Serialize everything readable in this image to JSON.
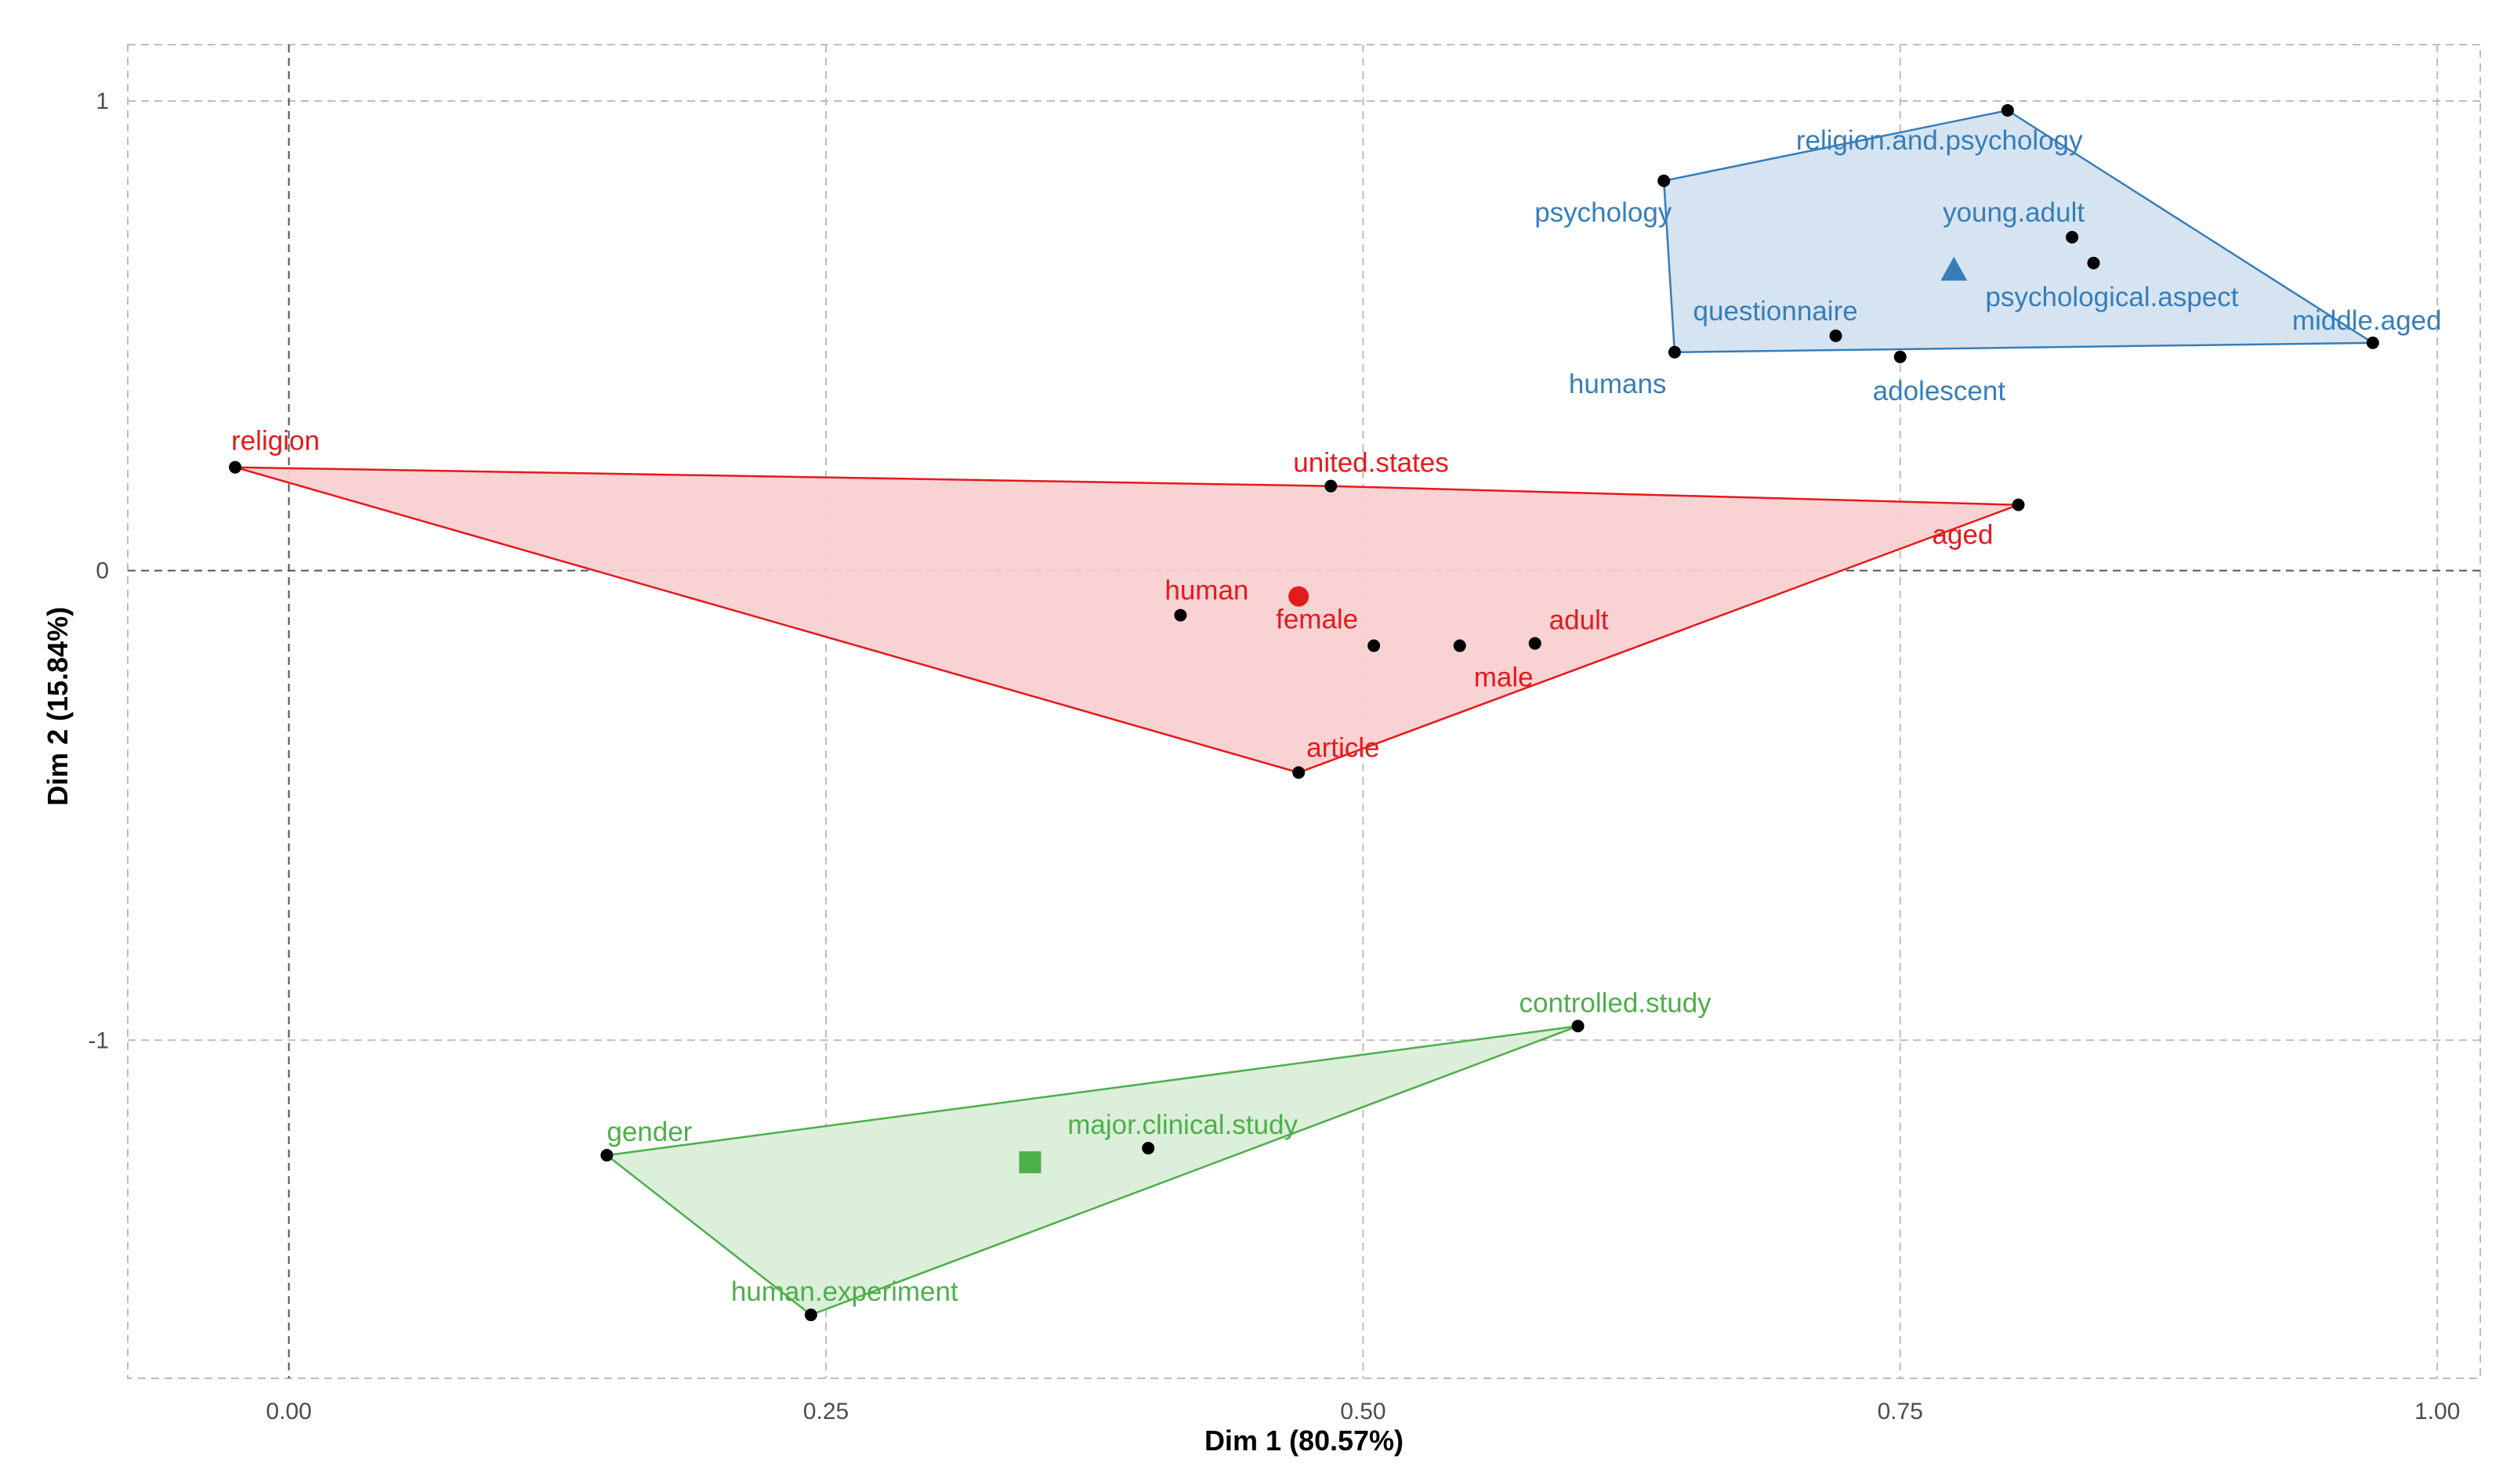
{
  "chart_data": {
    "type": "scatter",
    "title": "",
    "xlabel": "Dim 1 (80.57%)",
    "ylabel": "Dim 2 (15.84%)",
    "xlim": [
      -0.075,
      1.02
    ],
    "ylim": [
      -1.72,
      1.12
    ],
    "xticks": [
      0.0,
      0.25,
      0.5,
      0.75,
      1.0
    ],
    "xtick_labels": [
      "0.00",
      "0.25",
      "0.50",
      "0.75",
      "1.00"
    ],
    "yticks": [
      1,
      0,
      -1
    ],
    "ytick_labels": [
      "1",
      "0",
      "-1"
    ],
    "grid": true,
    "legend": "none",
    "clusters": [
      {
        "name": "cluster-1",
        "color": "#e41a1c",
        "fill": "#f8cfd0",
        "centroid": [
          0.47,
          -0.055
        ],
        "centroid_shape": "circle",
        "hull": [
          "religion",
          "united.states",
          "aged",
          "article"
        ],
        "points": [
          {
            "label": "religion",
            "x": -0.025,
            "y": 0.22
          },
          {
            "label": "united.states",
            "x": 0.485,
            "y": 0.18
          },
          {
            "label": "aged",
            "x": 0.805,
            "y": 0.14
          },
          {
            "label": "human",
            "x": 0.415,
            "y": -0.095
          },
          {
            "label": "female",
            "x": 0.505,
            "y": -0.16
          },
          {
            "label": "male",
            "x": 0.545,
            "y": -0.16
          },
          {
            "label": "adult",
            "x": 0.58,
            "y": -0.155
          },
          {
            "label": "article",
            "x": 0.47,
            "y": -0.43
          }
        ]
      },
      {
        "name": "cluster-2",
        "color": "#377eb8",
        "fill": "#d3e2f0",
        "centroid": [
          0.775,
          0.64
        ],
        "centroid_shape": "triangle",
        "hull": [
          "psychology",
          "religion.and.psychology",
          "middle.aged",
          "humans"
        ],
        "points": [
          {
            "label": "religion.and.psychology",
            "x": 0.8,
            "y": 0.98
          },
          {
            "label": "psychology",
            "x": 0.64,
            "y": 0.83
          },
          {
            "label": "young.adult",
            "x": 0.83,
            "y": 0.71
          },
          {
            "label": "psychological.aspect",
            "x": 0.84,
            "y": 0.655
          },
          {
            "label": "questionnaire",
            "x": 0.72,
            "y": 0.5
          },
          {
            "label": "humans",
            "x": 0.645,
            "y": 0.465
          },
          {
            "label": "adolescent",
            "x": 0.75,
            "y": 0.455
          },
          {
            "label": "middle.aged",
            "x": 0.97,
            "y": 0.485
          }
        ]
      },
      {
        "name": "cluster-3",
        "color": "#4daf4a",
        "fill": "#d9eed7",
        "centroid": [
          0.345,
          -1.26
        ],
        "centroid_shape": "square",
        "hull": [
          "gender",
          "controlled.study",
          "human.experiment"
        ],
        "points": [
          {
            "label": "controlled.study",
            "x": 0.6,
            "y": -0.97
          },
          {
            "label": "gender",
            "x": 0.148,
            "y": -1.245
          },
          {
            "label": "major.clinical.study",
            "x": 0.4,
            "y": -1.23
          },
          {
            "label": "human.experiment",
            "x": 0.243,
            "y": -1.585
          }
        ]
      }
    ]
  }
}
